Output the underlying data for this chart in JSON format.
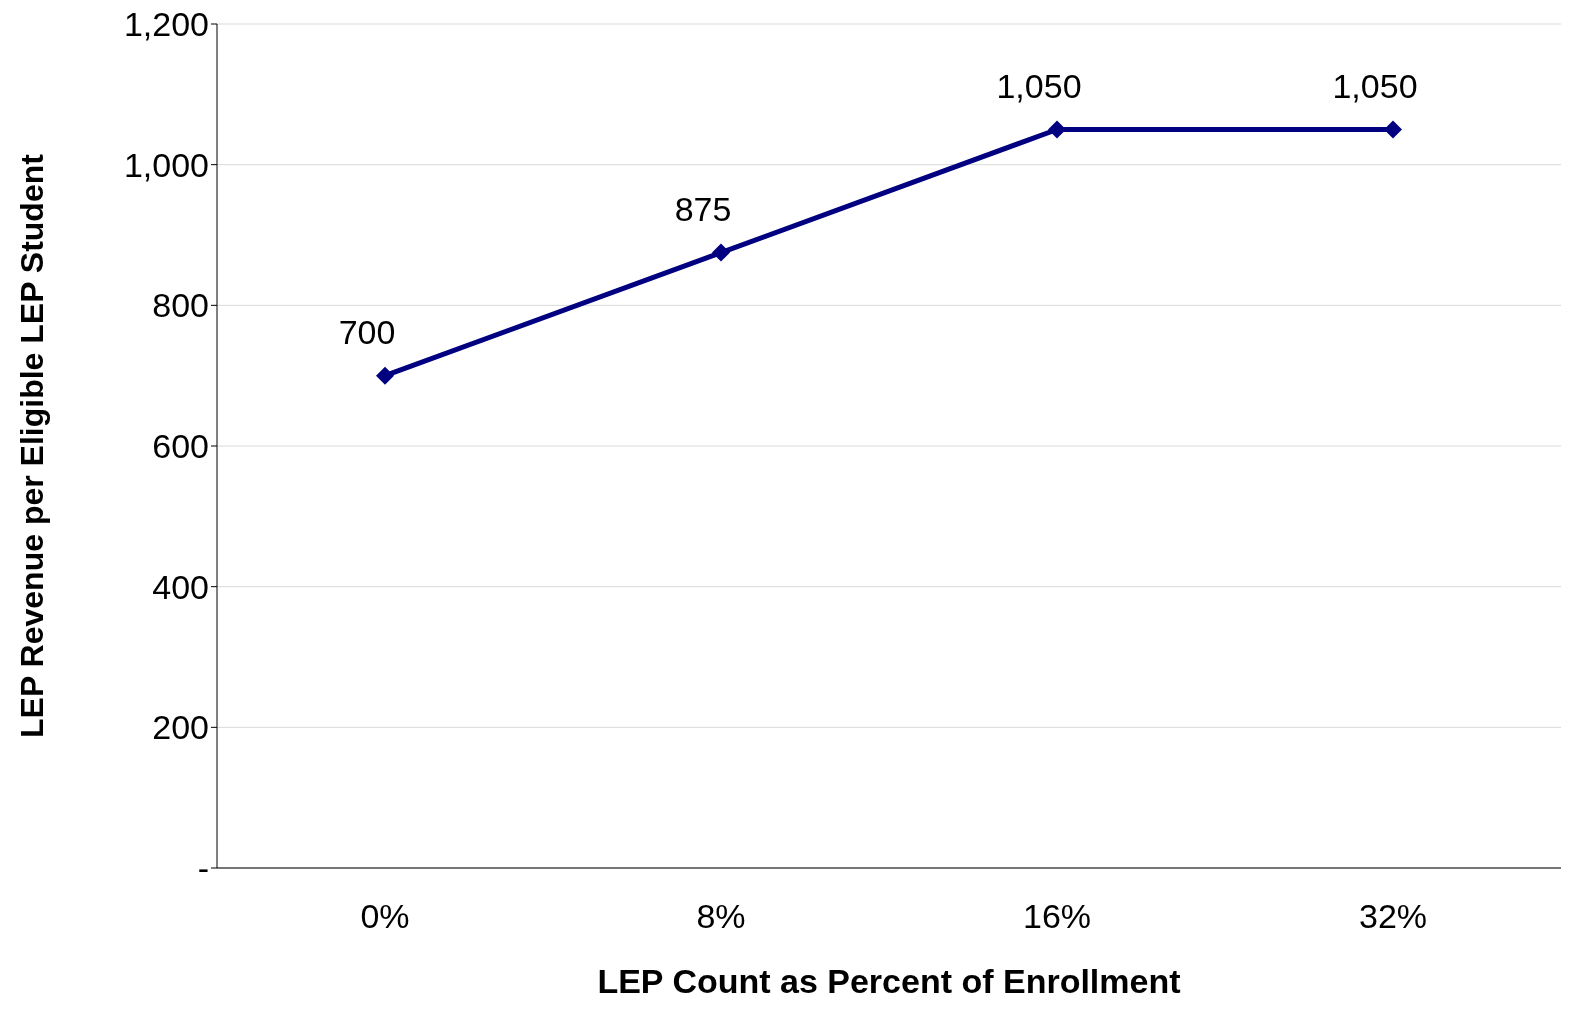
{
  "chart_data": {
    "type": "line",
    "xlabel": "LEP Count as Percent of Enrollment",
    "ylabel": "LEP Revenue  per Eligible LEP Student",
    "categories": [
      "0%",
      "8%",
      "16%",
      "32%"
    ],
    "values": [
      700,
      875,
      1050,
      1050
    ],
    "value_labels": [
      "700",
      "875",
      "1,050",
      "1,050"
    ],
    "color": "#000080",
    "marker": "diamond",
    "line_style": "solid",
    "ylim": [
      0,
      1200
    ],
    "yticks": [
      {
        "value": 0,
        "label": "-"
      },
      200,
      400,
      600,
      800,
      {
        "value": 1000,
        "label": "1,000"
      },
      {
        "value": 1200,
        "label": "1,200"
      }
    ],
    "grid": "y",
    "legend": false
  }
}
